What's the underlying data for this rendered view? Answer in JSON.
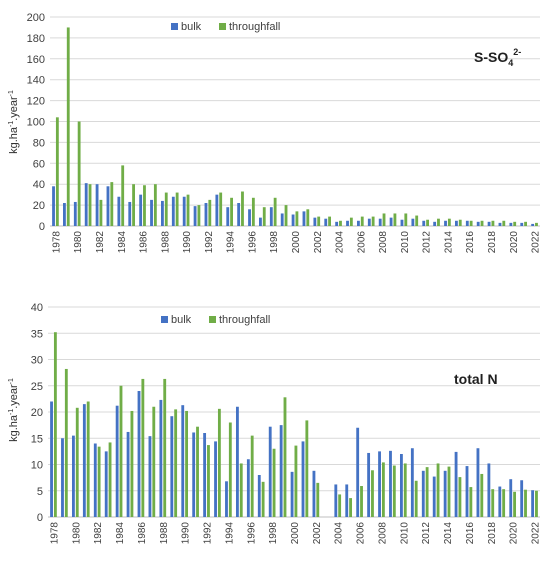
{
  "colors": {
    "bulk": "#4472c4",
    "throughfall": "#70ad47"
  },
  "chart_data": [
    {
      "type": "bar",
      "annotation": {
        "main": "S-SO",
        "sub": "4",
        "sup": "2-"
      },
      "ylabel": {
        "main": "kg.ha",
        "sup1": "-1",
        "mid": ".year",
        "sup2": "-1"
      },
      "ylim": [
        0,
        200
      ],
      "yticks": [
        0,
        20,
        40,
        60,
        80,
        100,
        120,
        140,
        160,
        180,
        200
      ],
      "grid": true,
      "legend_position": "top-center",
      "categories": [
        "1978",
        "1979",
        "1980",
        "1981",
        "1982",
        "1983",
        "1984",
        "1985",
        "1986",
        "1987",
        "1988",
        "1989",
        "1990",
        "1991",
        "1992",
        "1993",
        "1994",
        "1995",
        "1996",
        "1997",
        "1998",
        "1999",
        "2000",
        "2001",
        "2002",
        "2003",
        "2004",
        "2005",
        "2006",
        "2007",
        "2008",
        "2009",
        "2010",
        "2011",
        "2012",
        "2013",
        "2014",
        "2015",
        "2016",
        "2017",
        "2018",
        "2019",
        "2020",
        "2021",
        "2022"
      ],
      "xtick_labels": [
        "1978",
        "1980",
        "1982",
        "1984",
        "1986",
        "1988",
        "1990",
        "1992",
        "1994",
        "1996",
        "1998",
        "2000",
        "2002",
        "2004",
        "2006",
        "2008",
        "2010",
        "2012",
        "2014",
        "2016",
        "2018",
        "2020",
        "2022"
      ],
      "series": [
        {
          "name": "bulk",
          "values": [
            38,
            22,
            23,
            41,
            40,
            38,
            28,
            23,
            30,
            25,
            24,
            28,
            28,
            19,
            22,
            30,
            18,
            22,
            16,
            8,
            18,
            12,
            11,
            14,
            8,
            7,
            4,
            5,
            5,
            7,
            7,
            8,
            6,
            7,
            5,
            4,
            5,
            5,
            5,
            4,
            4,
            3,
            3,
            3,
            2
          ]
        },
        {
          "name": "throughfall",
          "values": [
            104,
            190,
            100,
            40,
            25,
            42,
            58,
            40,
            39,
            40,
            32,
            32,
            30,
            20,
            25,
            32,
            27,
            33,
            27,
            18,
            27,
            20,
            14,
            16,
            9,
            9,
            5,
            8,
            9,
            9,
            12,
            12,
            12,
            10,
            6,
            7,
            7,
            6,
            5,
            5,
            5,
            5,
            4,
            4,
            3
          ]
        }
      ]
    },
    {
      "type": "bar",
      "annotation": {
        "main": "total N"
      },
      "ylabel": {
        "main": "kg.ha",
        "sup1": "-1",
        "mid": ".year",
        "sup2": "-1"
      },
      "ylim": [
        0,
        40
      ],
      "yticks": [
        0,
        5,
        10,
        15,
        20,
        25,
        30,
        35,
        40
      ],
      "grid": true,
      "legend_position": "top-center",
      "categories": [
        "1978",
        "1979",
        "1980",
        "1981",
        "1982",
        "1983",
        "1984",
        "1985",
        "1986",
        "1987",
        "1988",
        "1989",
        "1990",
        "1991",
        "1992",
        "1993",
        "1994",
        "1995",
        "1996",
        "1997",
        "1998",
        "1999",
        "2000",
        "2001",
        "2002",
        "2003",
        "2004",
        "2005",
        "2006",
        "2007",
        "2008",
        "2009",
        "2010",
        "2011",
        "2012",
        "2013",
        "2014",
        "2015",
        "2016",
        "2017",
        "2018",
        "2019",
        "2020",
        "2021",
        "2022"
      ],
      "xtick_labels": [
        "1978",
        "1980",
        "1982",
        "1984",
        "1986",
        "1988",
        "1990",
        "1992",
        "1994",
        "1996",
        "1998",
        "2000",
        "2002",
        "2004",
        "2006",
        "2008",
        "2010",
        "2012",
        "2014",
        "2016",
        "2018",
        "2020",
        "2022"
      ],
      "series": [
        {
          "name": "bulk",
          "values": [
            22,
            15,
            15.5,
            21.5,
            14,
            12.5,
            21.2,
            16.2,
            24,
            15.4,
            22.3,
            19.2,
            21.3,
            16.1,
            16,
            14.4,
            6.8,
            21,
            11,
            8,
            17.2,
            17.5,
            8.6,
            14.4,
            8.8,
            0,
            6.2,
            6.2,
            17,
            12.2,
            12.5,
            12.6,
            12,
            13.1,
            8.8,
            7.7,
            8.8,
            12.4,
            9.7,
            13.1,
            10.2,
            5.8,
            7.2,
            7,
            5.1
          ]
        },
        {
          "name": "throughfall",
          "values": [
            35.2,
            28.2,
            20.8,
            22,
            13.4,
            14.2,
            25,
            20.2,
            26.3,
            21,
            26.3,
            20.5,
            20.2,
            17.2,
            13.7,
            20.6,
            18,
            10.2,
            15.5,
            6.7,
            13,
            22.8,
            13.6,
            18.4,
            6.5,
            0,
            4.3,
            3.6,
            5.9,
            8.9,
            10.4,
            9.8,
            10.2,
            6.9,
            9.5,
            10.2,
            9.6,
            7.6,
            5.7,
            8.2,
            5.3,
            5.3,
            4.8,
            5.2,
            5
          ]
        }
      ]
    }
  ]
}
